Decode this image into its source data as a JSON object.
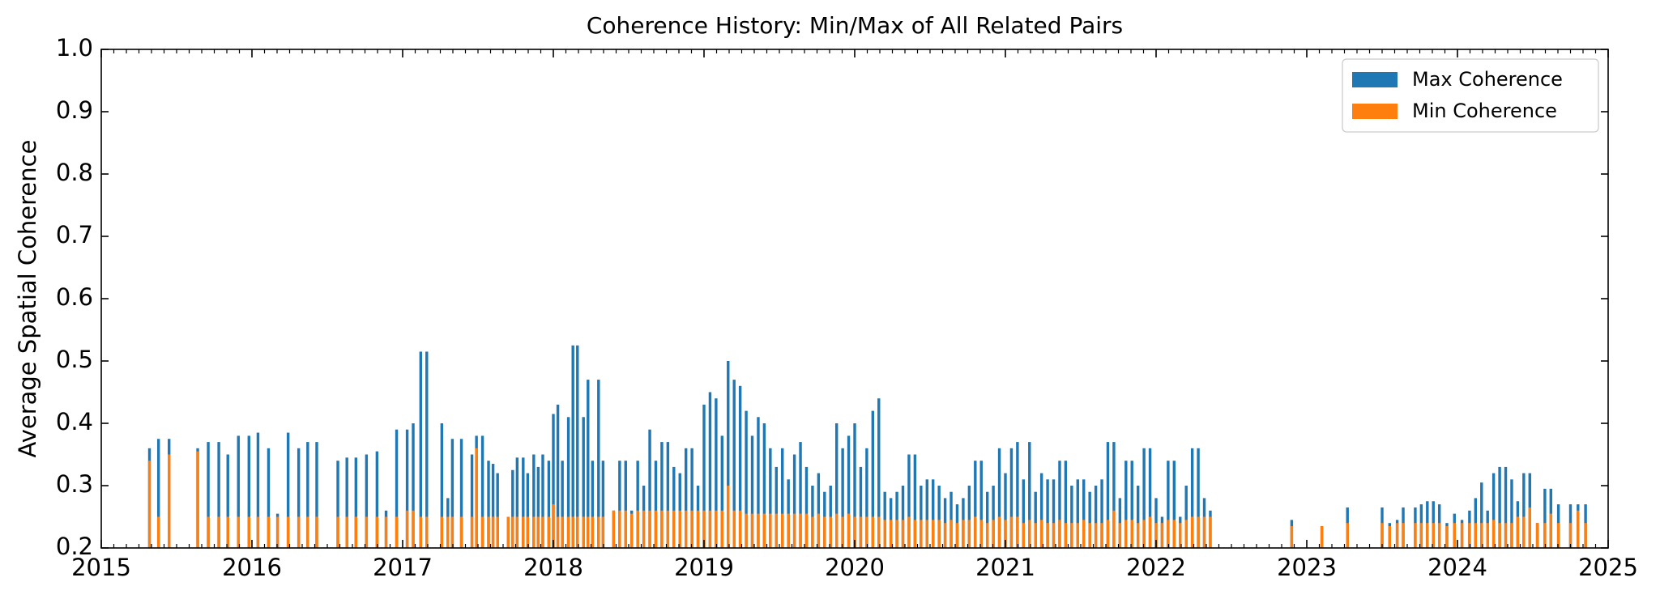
{
  "chart_data": {
    "type": "bar",
    "title": "Coherence History: Min/Max of All Related Pairs",
    "ylabel": "Average Spatial Coherence",
    "legend": "upper right",
    "xlim": [
      2015,
      2025
    ],
    "xticks": [
      2015,
      2016,
      2017,
      2018,
      2019,
      2020,
      2021,
      2022,
      2023,
      2024,
      2025
    ],
    "ylim": [
      0.2,
      1
    ],
    "yticks": [
      0.2,
      0.3,
      0.4,
      0.5,
      0.6,
      0.7,
      0.8,
      0.9,
      {
        "value": 1,
        "label": "1.0"
      }
    ],
    "x": [
      2015.32,
      2015.38,
      2015.45,
      2015.64,
      2015.71,
      2015.78,
      2015.84,
      2015.91,
      2015.98,
      2016.04,
      2016.11,
      2016.17,
      2016.24,
      2016.31,
      2016.37,
      2016.43,
      2016.57,
      2016.63,
      2016.69,
      2016.76,
      2016.83,
      2016.89,
      2016.96,
      2017.03,
      2017.07,
      2017.12,
      2017.16,
      2017.26,
      2017.3,
      2017.33,
      2017.39,
      2017.46,
      2017.49,
      2017.53,
      2017.57,
      2017.6,
      2017.63,
      2017.7,
      2017.73,
      2017.76,
      2017.8,
      2017.83,
      2017.87,
      2017.9,
      2017.93,
      2017.97,
      2018.0,
      2018.03,
      2018.06,
      2018.1,
      2018.13,
      2018.16,
      2018.2,
      2018.23,
      2018.26,
      2018.3,
      2018.33,
      2018.4,
      2018.44,
      2018.48,
      2018.52,
      2018.56,
      2018.6,
      2018.64,
      2018.68,
      2018.72,
      2018.76,
      2018.8,
      2018.84,
      2018.88,
      2018.92,
      2018.96,
      2019.0,
      2019.04,
      2019.08,
      2019.12,
      2019.16,
      2019.2,
      2019.24,
      2019.28,
      2019.32,
      2019.36,
      2019.4,
      2019.44,
      2019.48,
      2019.52,
      2019.56,
      2019.6,
      2019.64,
      2019.68,
      2019.72,
      2019.76,
      2019.8,
      2019.84,
      2019.88,
      2019.92,
      2019.96,
      2020.0,
      2020.04,
      2020.08,
      2020.12,
      2020.16,
      2020.2,
      2020.24,
      2020.28,
      2020.32,
      2020.36,
      2020.4,
      2020.44,
      2020.48,
      2020.52,
      2020.56,
      2020.6,
      2020.64,
      2020.68,
      2020.72,
      2020.76,
      2020.8,
      2020.84,
      2020.88,
      2020.92,
      2020.96,
      2021.0,
      2021.04,
      2021.08,
      2021.12,
      2021.16,
      2021.2,
      2021.24,
      2021.28,
      2021.32,
      2021.36,
      2021.4,
      2021.44,
      2021.48,
      2021.52,
      2021.56,
      2021.6,
      2021.64,
      2021.68,
      2021.72,
      2021.76,
      2021.8,
      2021.84,
      2021.88,
      2021.92,
      2021.96,
      2022.0,
      2022.04,
      2022.08,
      2022.12,
      2022.16,
      2022.2,
      2022.24,
      2022.28,
      2022.32,
      2022.36,
      2022.9,
      2023.1,
      2023.27,
      2023.5,
      2023.55,
      2023.6,
      2023.64,
      2023.72,
      2023.76,
      2023.8,
      2023.84,
      2023.88,
      2023.93,
      2023.98,
      2024.03,
      2024.08,
      2024.12,
      2024.16,
      2024.2,
      2024.24,
      2024.28,
      2024.32,
      2024.36,
      2024.4,
      2024.44,
      2024.48,
      2024.53,
      2024.58,
      2024.62,
      2024.67,
      2024.75,
      2024.8,
      2024.85
    ],
    "series": [
      {
        "name": "Max Coherence",
        "color": "#1f77b4",
        "values": [
          0.36,
          0.375,
          0.375,
          0.36,
          0.37,
          0.37,
          0.35,
          0.38,
          0.38,
          0.385,
          0.36,
          0.255,
          0.385,
          0.36,
          0.37,
          0.37,
          0.34,
          0.345,
          0.345,
          0.35,
          0.355,
          0.26,
          0.39,
          0.39,
          0.4,
          0.515,
          0.515,
          0.4,
          0.28,
          0.375,
          0.375,
          0.35,
          0.38,
          0.38,
          0.34,
          0.335,
          0.32,
          0.25,
          0.325,
          0.345,
          0.345,
          0.32,
          0.35,
          0.33,
          0.35,
          0.34,
          0.415,
          0.43,
          0.34,
          0.41,
          0.525,
          0.525,
          0.41,
          0.47,
          0.34,
          0.47,
          0.34,
          0.26,
          0.34,
          0.34,
          0.26,
          0.34,
          0.3,
          0.39,
          0.34,
          0.37,
          0.37,
          0.33,
          0.32,
          0.36,
          0.36,
          0.3,
          0.43,
          0.45,
          0.44,
          0.38,
          0.5,
          0.47,
          0.46,
          0.42,
          0.38,
          0.41,
          0.4,
          0.36,
          0.33,
          0.36,
          0.31,
          0.35,
          0.37,
          0.33,
          0.3,
          0.32,
          0.29,
          0.3,
          0.4,
          0.36,
          0.38,
          0.4,
          0.33,
          0.36,
          0.42,
          0.44,
          0.29,
          0.28,
          0.29,
          0.3,
          0.35,
          0.35,
          0.3,
          0.31,
          0.31,
          0.3,
          0.28,
          0.29,
          0.27,
          0.28,
          0.3,
          0.34,
          0.34,
          0.29,
          0.3,
          0.36,
          0.32,
          0.36,
          0.37,
          0.31,
          0.37,
          0.29,
          0.32,
          0.31,
          0.31,
          0.34,
          0.34,
          0.3,
          0.31,
          0.31,
          0.29,
          0.3,
          0.31,
          0.37,
          0.37,
          0.28,
          0.34,
          0.34,
          0.3,
          0.36,
          0.36,
          0.28,
          0.25,
          0.34,
          0.34,
          0.25,
          0.3,
          0.36,
          0.36,
          0.28,
          0.26,
          0.245,
          0.235,
          0.265,
          0.265,
          0.24,
          0.245,
          0.265,
          0.265,
          0.27,
          0.275,
          0.275,
          0.27,
          0.24,
          0.255,
          0.245,
          0.26,
          0.28,
          0.305,
          0.26,
          0.32,
          0.33,
          0.33,
          0.31,
          0.275,
          0.32,
          0.32,
          0.24,
          0.295,
          0.295,
          0.27,
          0.27,
          0.27,
          0.27
        ]
      },
      {
        "name": "Min Coherence",
        "color": "#ff7f0e",
        "values": [
          0.34,
          0.25,
          0.35,
          0.355,
          0.25,
          0.25,
          0.25,
          0.25,
          0.25,
          0.25,
          0.25,
          0.25,
          0.25,
          0.25,
          0.25,
          0.25,
          0.25,
          0.25,
          0.25,
          0.25,
          0.25,
          0.25,
          0.25,
          0.26,
          0.26,
          0.25,
          0.25,
          0.25,
          0.25,
          0.25,
          0.25,
          0.25,
          0.36,
          0.25,
          0.25,
          0.25,
          0.25,
          0.25,
          0.25,
          0.25,
          0.25,
          0.25,
          0.25,
          0.25,
          0.25,
          0.25,
          0.27,
          0.25,
          0.25,
          0.25,
          0.25,
          0.25,
          0.25,
          0.25,
          0.25,
          0.25,
          0.25,
          0.26,
          0.26,
          0.26,
          0.255,
          0.26,
          0.26,
          0.26,
          0.26,
          0.26,
          0.26,
          0.26,
          0.26,
          0.26,
          0.26,
          0.26,
          0.26,
          0.26,
          0.26,
          0.26,
          0.3,
          0.26,
          0.26,
          0.255,
          0.255,
          0.255,
          0.255,
          0.255,
          0.255,
          0.255,
          0.255,
          0.255,
          0.255,
          0.255,
          0.25,
          0.255,
          0.25,
          0.25,
          0.255,
          0.25,
          0.255,
          0.25,
          0.25,
          0.25,
          0.25,
          0.25,
          0.245,
          0.245,
          0.245,
          0.245,
          0.25,
          0.245,
          0.245,
          0.245,
          0.245,
          0.245,
          0.24,
          0.245,
          0.24,
          0.245,
          0.245,
          0.25,
          0.245,
          0.24,
          0.245,
          0.25,
          0.245,
          0.25,
          0.25,
          0.24,
          0.245,
          0.24,
          0.245,
          0.24,
          0.24,
          0.245,
          0.24,
          0.24,
          0.24,
          0.245,
          0.24,
          0.24,
          0.24,
          0.245,
          0.26,
          0.24,
          0.245,
          0.245,
          0.24,
          0.245,
          0.25,
          0.24,
          0.24,
          0.245,
          0.245,
          0.24,
          0.245,
          0.25,
          0.25,
          0.25,
          0.25,
          0.235,
          0.235,
          0.24,
          0.24,
          0.235,
          0.24,
          0.24,
          0.24,
          0.24,
          0.24,
          0.24,
          0.24,
          0.235,
          0.24,
          0.24,
          0.24,
          0.24,
          0.24,
          0.24,
          0.245,
          0.24,
          0.24,
          0.24,
          0.25,
          0.25,
          0.265,
          0.24,
          0.24,
          0.255,
          0.24,
          0.24,
          0.26,
          0.24
        ]
      }
    ]
  }
}
